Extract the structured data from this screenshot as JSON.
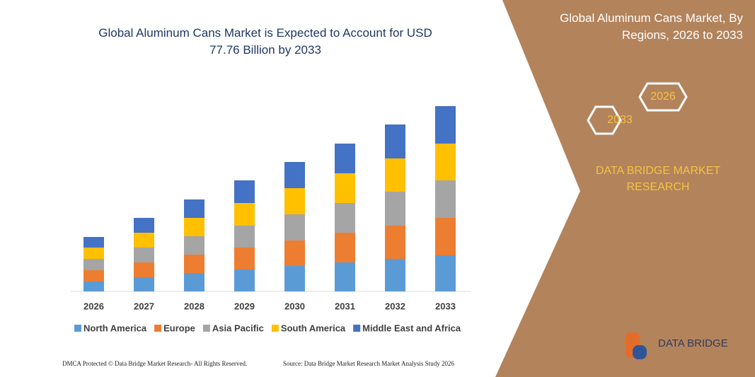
{
  "chart_data": {
    "type": "bar",
    "stacked": true,
    "title": "Global Aluminum Cans Market is Expected to Account for USD 77.76 Billion by 2033",
    "categories": [
      "2026",
      "2027",
      "2028",
      "2029",
      "2030",
      "2031",
      "2032",
      "2033"
    ],
    "series": [
      {
        "name": "North America",
        "color": "#5b9bd5",
        "values": [
          14,
          20,
          26,
          31,
          36,
          41,
          46,
          51
        ]
      },
      {
        "name": "Europe",
        "color": "#ed7d31",
        "values": [
          16,
          21,
          26,
          31,
          36,
          42,
          47,
          53
        ]
      },
      {
        "name": "Asia Pacific",
        "color": "#a5a5a5",
        "values": [
          16,
          21,
          26,
          31,
          37,
          42,
          48,
          53
        ]
      },
      {
        "name": "South America",
        "color": "#ffc000",
        "values": [
          16,
          21,
          26,
          32,
          37,
          42,
          47,
          52
        ]
      },
      {
        "name": "Middle East and Africa",
        "color": "#4472c4",
        "values": [
          15,
          21,
          26,
          32,
          37,
          42,
          48,
          53
        ]
      }
    ]
  },
  "panel": {
    "title": "Global Aluminum Cans Market, By Regions, 2026 to 2033",
    "hex_1": "2026",
    "hex_2": "2033",
    "brand": "DATA BRIDGE MARKET RESEARCH",
    "logo": "DATA BRIDGE"
  },
  "footer": {
    "left": "DMCA Protected © Data Bridge Market Research- All Rights Reserved.",
    "right": "Source: Data Bridge Market Research Market Analysis Study 2026"
  }
}
